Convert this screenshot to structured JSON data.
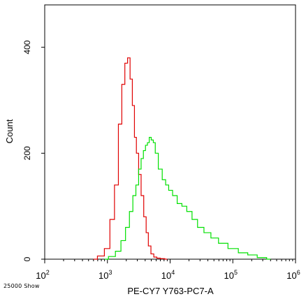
{
  "chart_data": {
    "type": "line",
    "title": "",
    "xlabel": "PE-CY7 Y763-PC7-A",
    "ylabel": "Count",
    "x_scale": "log",
    "xlim": [
      100,
      1000000
    ],
    "ylim": [
      0,
      480
    ],
    "x_ticks": [
      {
        "value": 100,
        "base": "10",
        "exp": "2"
      },
      {
        "value": 1000,
        "base": "10",
        "exp": "3"
      },
      {
        "value": 10000,
        "base": "10",
        "exp": "4"
      },
      {
        "value": 100000,
        "base": "10",
        "exp": "5"
      },
      {
        "value": 1000000,
        "base": "10",
        "exp": "6"
      }
    ],
    "y_ticks": [
      {
        "value": 0,
        "label": "0"
      },
      {
        "value": 200,
        "label": "200"
      },
      {
        "value": 400,
        "label": "400"
      }
    ],
    "grid": false,
    "legend": "none",
    "series": [
      {
        "color": "#e00000",
        "x": [
          600,
          800,
          1000,
          1200,
          1400,
          1600,
          1800,
          2000,
          2200,
          2400,
          2600,
          2800,
          3000,
          3300,
          3600,
          4000,
          4300,
          4700,
          5200,
          5800,
          6500,
          7500,
          9000
        ],
        "y": [
          0,
          6,
          20,
          75,
          140,
          255,
          330,
          370,
          380,
          340,
          290,
          230,
          200,
          160,
          120,
          80,
          50,
          25,
          10,
          4,
          2,
          1,
          0
        ]
      },
      {
        "color": "#00e000",
        "x": [
          900,
          1200,
          1500,
          1800,
          2100,
          2400,
          2700,
          3000,
          3300,
          3600,
          3900,
          4200,
          4500,
          4800,
          5200,
          5600,
          6000,
          7000,
          8000,
          9000,
          10000,
          12000,
          14000,
          17000,
          20000,
          25000,
          30000,
          40000,
          50000,
          70000,
          100000,
          150000,
          200000,
          300000,
          400000
        ],
        "y": [
          0,
          5,
          15,
          35,
          60,
          90,
          120,
          140,
          170,
          190,
          205,
          215,
          220,
          230,
          225,
          220,
          200,
          170,
          150,
          140,
          130,
          120,
          105,
          100,
          90,
          75,
          60,
          50,
          40,
          30,
          20,
          12,
          8,
          3,
          0
        ]
      }
    ]
  },
  "footer": {
    "note": "25000 Show"
  }
}
